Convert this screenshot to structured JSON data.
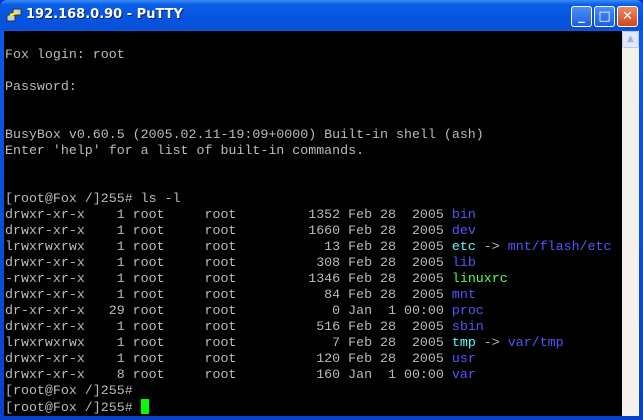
{
  "window": {
    "title": "192.168.0.90 - PuTTY"
  },
  "colors": {
    "default": "#bbbbbb",
    "dir": "#5555ff",
    "link": "#55ffff",
    "exec": "#55ff55",
    "cursor": "#00ff00"
  },
  "terminal": {
    "lines": [
      [],
      [
        [
          "Fox login: root",
          "default"
        ]
      ],
      [],
      [
        [
          "Password:",
          "default"
        ]
      ],
      [],
      [],
      [
        [
          "BusyBox v0.60.5 (2005.02.11-19:09+0000) Built-in shell (ash)",
          "default"
        ]
      ],
      [
        [
          "Enter 'help' for a list of built-in commands.",
          "default"
        ]
      ],
      [],
      [],
      [
        [
          "[root@Fox /]255# ls -l",
          "default"
        ]
      ],
      [
        [
          "drwxr-xr-x    1 root     root         1352 Feb 28  2005 ",
          "default"
        ],
        [
          "bin",
          "dir"
        ]
      ],
      [
        [
          "drwxr-xr-x    1 root     root         1660 Feb 28  2005 ",
          "default"
        ],
        [
          "dev",
          "dir"
        ]
      ],
      [
        [
          "lrwxrwxrwx    1 root     root           13 Feb 28  2005 ",
          "default"
        ],
        [
          "etc",
          "link"
        ],
        [
          " -> ",
          "default"
        ],
        [
          "mnt/flash/etc",
          "dir"
        ]
      ],
      [
        [
          "drwxr-xr-x    1 root     root          308 Feb 28  2005 ",
          "default"
        ],
        [
          "lib",
          "dir"
        ]
      ],
      [
        [
          "-rwxr-xr-x    1 root     root         1346 Feb 28  2005 ",
          "default"
        ],
        [
          "linuxrc",
          "exec"
        ]
      ],
      [
        [
          "drwxr-xr-x    1 root     root           84 Feb 28  2005 ",
          "default"
        ],
        [
          "mnt",
          "dir"
        ]
      ],
      [
        [
          "dr-xr-xr-x   29 root     root            0 Jan  1 00:00 ",
          "default"
        ],
        [
          "proc",
          "dir"
        ]
      ],
      [
        [
          "drwxr-xr-x    1 root     root          516 Feb 28  2005 ",
          "default"
        ],
        [
          "sbin",
          "dir"
        ]
      ],
      [
        [
          "lrwxrwxrwx    1 root     root            7 Feb 28  2005 ",
          "default"
        ],
        [
          "tmp",
          "link"
        ],
        [
          " -> ",
          "default"
        ],
        [
          "var/tmp",
          "dir"
        ]
      ],
      [
        [
          "drwxr-xr-x    1 root     root          120 Feb 28  2005 ",
          "default"
        ],
        [
          "usr",
          "dir"
        ]
      ],
      [
        [
          "drwxr-xr-x    8 root     root          160 Jan  1 00:00 ",
          "default"
        ],
        [
          "var",
          "dir"
        ]
      ],
      [
        [
          "[root@Fox /]255# ",
          "default"
        ]
      ],
      [
        [
          "[root@Fox /]255# ",
          "default"
        ]
      ]
    ]
  }
}
